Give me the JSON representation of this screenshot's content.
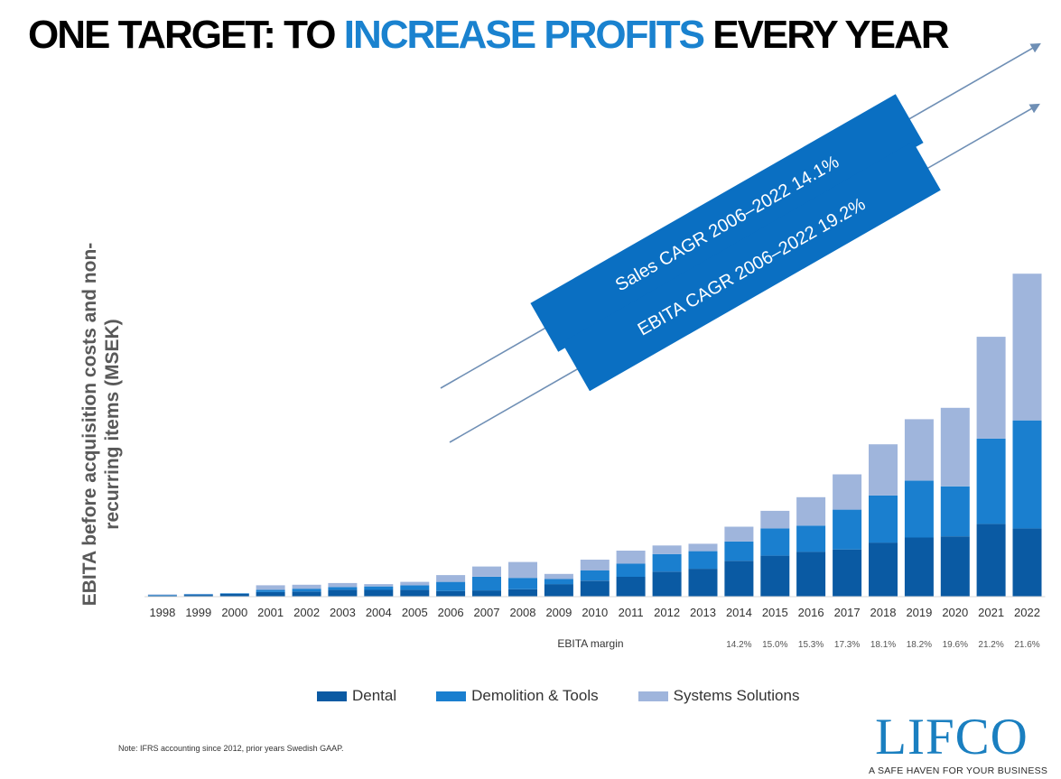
{
  "title": {
    "part1": "ONE TARGET: TO ",
    "highlight": "INCREASE PROFITS",
    "part2": " EVERY YEAR"
  },
  "chart_data": {
    "type": "bar",
    "stacked": true,
    "title": "ONE TARGET: TO INCREASE PROFITS EVERY YEAR",
    "ylabel": "EBITA before acquisition costs and non-recurring items (MSEK)",
    "xlabel": "",
    "categories": [
      "1998",
      "1999",
      "2000",
      "2001",
      "2002",
      "2003",
      "2004",
      "2005",
      "2006",
      "2007",
      "2008",
      "2009",
      "2010",
      "2011",
      "2012",
      "2013",
      "2014",
      "2015",
      "2016",
      "2017",
      "2018",
      "2019",
      "2020",
      "2021",
      "2022"
    ],
    "series": [
      {
        "name": "Dental",
        "color": "#0a5aa3",
        "values": [
          10,
          15,
          25,
          40,
          45,
          60,
          60,
          60,
          50,
          55,
          65,
          110,
          140,
          175,
          220,
          245,
          315,
          360,
          395,
          415,
          475,
          520,
          530,
          640,
          600
        ]
      },
      {
        "name": "Demolition & Tools",
        "color": "#1a7fcf",
        "values": [
          5,
          5,
          5,
          20,
          25,
          25,
          30,
          40,
          80,
          120,
          100,
          45,
          90,
          115,
          155,
          155,
          170,
          240,
          230,
          350,
          415,
          500,
          440,
          750,
          950
        ]
      },
      {
        "name": "Systems Solutions",
        "color": "#9fb5dc",
        "values": [
          5,
          5,
          0,
          40,
          35,
          35,
          20,
          30,
          60,
          90,
          140,
          45,
          95,
          115,
          75,
          65,
          130,
          155,
          250,
          310,
          450,
          540,
          690,
          895,
          1290
        ]
      }
    ],
    "ylim": [
      0,
      3000
    ],
    "legend_position": "bottom",
    "ebita_margin": {
      "label": "EBITA margin",
      "values": {
        "2014": "14.2%",
        "2015": "15.0%",
        "2016": "15.3%",
        "2017": "17.3%",
        "2018": "18.1%",
        "2019": "18.2%",
        "2020": "19.6%",
        "2021": "21.2%",
        "2022": "21.6%"
      }
    },
    "annotations": [
      {
        "text": "Sales CAGR 2006–2022 14.1%",
        "color": "#0a6fc2"
      },
      {
        "text": "EBITA CAGR 2006–2022 19.2%",
        "color": "#0a6fc2"
      }
    ]
  },
  "legend": [
    {
      "label": "Dental",
      "color": "#0a5aa3"
    },
    {
      "label": "Demolition & Tools",
      "color": "#1a7fcf"
    },
    {
      "label": "Systems Solutions",
      "color": "#9fb5dc"
    }
  ],
  "note": "Note: IFRS accounting since 2012, prior years Swedish GAAP.",
  "logo": {
    "name": "LIFCO",
    "tagline": "A SAFE HAVEN FOR YOUR BUSINESS"
  }
}
